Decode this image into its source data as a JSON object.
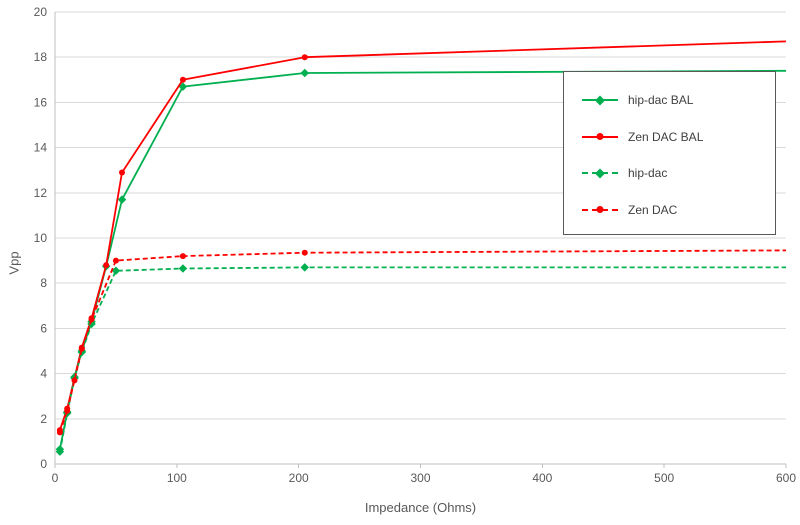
{
  "chart_data": {
    "type": "line",
    "title": "",
    "xlabel": "Impedance (Ohms)",
    "ylabel": "Vpp",
    "xlim": [
      0,
      600
    ],
    "ylim": [
      0,
      20
    ],
    "x_ticks": [
      0,
      100,
      200,
      300,
      400,
      500,
      600
    ],
    "y_ticks": [
      0,
      2,
      4,
      6,
      8,
      10,
      12,
      14,
      16,
      18,
      20
    ],
    "grid": "horizontal",
    "legend_position": "right-inside-box",
    "series": [
      {
        "name": "hip-dac BAL",
        "color": "#00B050",
        "style": "solid",
        "marker": "diamond",
        "x": [
          4,
          10,
          16,
          22,
          30,
          42,
          55,
          105,
          205,
          600
        ],
        "y": [
          0.65,
          2.3,
          3.85,
          5.0,
          6.3,
          8.75,
          11.7,
          16.7,
          17.3,
          17.4
        ]
      },
      {
        "name": "Zen DAC BAL",
        "color": "#FF0000",
        "style": "solid",
        "marker": "circle",
        "x": [
          4,
          10,
          16,
          22,
          30,
          42,
          55,
          105,
          205,
          600
        ],
        "y": [
          1.5,
          2.45,
          3.8,
          5.15,
          6.45,
          8.8,
          12.9,
          17.0,
          18.0,
          18.7
        ]
      },
      {
        "name": "hip-dac",
        "color": "#00B050",
        "style": "dashed",
        "marker": "diamond",
        "x": [
          4,
          10,
          16,
          22,
          30,
          50,
          105,
          205,
          600
        ],
        "y": [
          0.55,
          2.25,
          3.8,
          4.95,
          6.2,
          8.55,
          8.65,
          8.7,
          8.7
        ]
      },
      {
        "name": "Zen DAC",
        "color": "#FF0000",
        "style": "dashed",
        "marker": "circle",
        "x": [
          4,
          10,
          16,
          22,
          30,
          50,
          105,
          205,
          600
        ],
        "y": [
          1.4,
          2.35,
          3.7,
          5.1,
          6.4,
          9.0,
          9.2,
          9.35,
          9.45
        ]
      }
    ]
  },
  "colors": {
    "grid": "#D9D9D9",
    "axis": "#BFBFBF",
    "text": "#595959",
    "legend_border": "#595959"
  }
}
